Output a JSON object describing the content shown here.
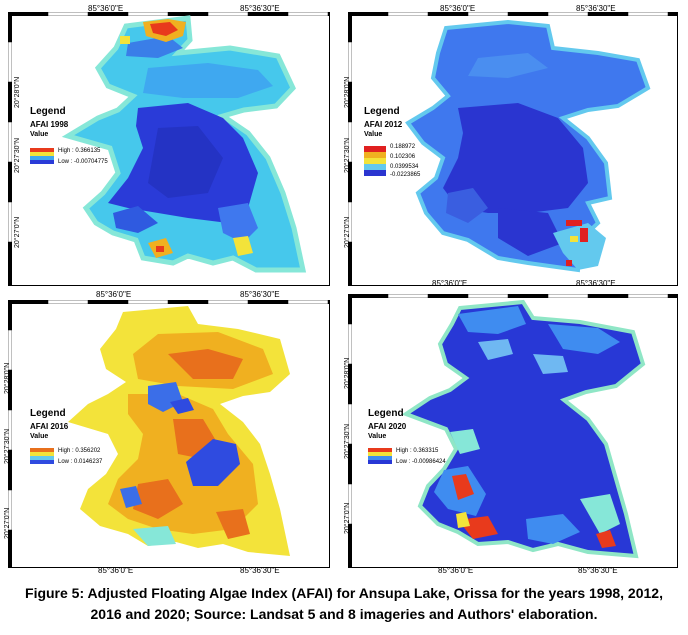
{
  "panels": [
    {
      "id": "p1998",
      "top_coords": [
        "85°36'0\"E",
        "85°36'30\"E"
      ],
      "bottom_coords": [],
      "left_coords": [
        "20°28'0\"N",
        "20°27'30\"N",
        "20°27'0\"N"
      ],
      "legend": {
        "title": "Legend",
        "name": "AFAI 1998",
        "value": "Value",
        "labels": [
          "High : 0.366135",
          "Low : -0.00704775"
        ]
      },
      "colors": {
        "water": "#2a3bd8",
        "mid": "#3fa8f0",
        "edge": "#86e7d8",
        "hot": "#e83a1c"
      }
    },
    {
      "id": "p2012",
      "top_coords": [
        "85°36'0\"E",
        "85°36'30\"E"
      ],
      "bottom_coords": [
        "85°36'0\"E",
        "85°36'30\"E"
      ],
      "left_coords": [
        "20°28'0\"N",
        "20°27'30\"N",
        "20°27'0\"N"
      ],
      "legend": {
        "title": "Legend",
        "name": "AFAI 2012",
        "value": "Value",
        "labels": [
          "0.188972",
          "0.102306",
          "0.0399534",
          "-0.0223865"
        ]
      },
      "colors": {
        "water": "#2a35d0",
        "mid": "#3f78ee",
        "edge": "#63c9ee",
        "hot": "#e02020"
      }
    },
    {
      "id": "p2016",
      "top_coords": [
        "85°36'0\"E",
        "85°36'30\"E"
      ],
      "bottom_coords": [
        "85°36'0\"E",
        "85°36'30\"E"
      ],
      "left_coords": [
        "20°28'0\"N",
        "20°27'30\"N",
        "20°27'0\"N"
      ],
      "legend": {
        "title": "Legend",
        "name": "AFAI 2016",
        "value": "Value",
        "labels": [
          "High : 0.356202",
          "Low : 0.0146237"
        ]
      },
      "colors": {
        "water": "#2f4be0",
        "mid": "#f0b020",
        "edge": "#f3e33a",
        "hot": "#e8701c"
      }
    },
    {
      "id": "p2020",
      "top_coords": [],
      "bottom_coords": [
        "85°36'0\"E",
        "85°36'30\"E"
      ],
      "left_coords": [
        "20°28'0\"N",
        "20°27'30\"N",
        "20°27'0\"N"
      ],
      "legend": {
        "title": "Legend",
        "name": "AFAI 2020",
        "value": "Value",
        "labels": [
          "High : 0.363315",
          "Low : -0.00986424"
        ]
      },
      "colors": {
        "water": "#2838d6",
        "mid": "#3f8cf0",
        "edge": "#8fe6c6",
        "hot": "#e83a1c"
      }
    }
  ],
  "caption": "Figure 5: Adjusted Floating Algae Index (AFAI) for Ansupa Lake, Orissa for the years 1998, 2012, 2016 and 2020; Source: Landsat 5 and 8 imageries and Authors' elaboration."
}
